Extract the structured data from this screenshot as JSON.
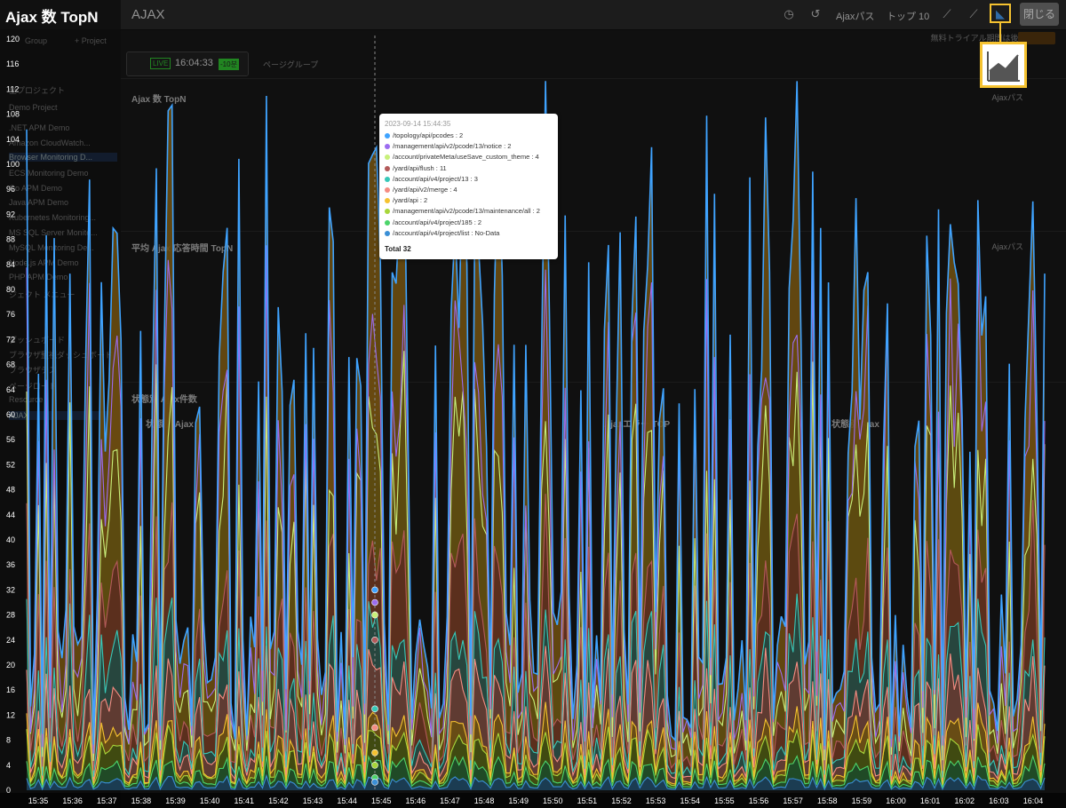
{
  "overlay": {
    "title": "Ajax 数 TopN"
  },
  "header": {
    "title": "AJAX",
    "ajax_path_label": "Ajaxパス",
    "top_label": "トップ 10",
    "close_label": "閉じる",
    "trial_text": "無料トライアル期間は後 349日で"
  },
  "live": {
    "badge": "LIVE",
    "time": "16:04:33",
    "seconds": "-10분",
    "page_group": "ページグループ"
  },
  "sidebar": {
    "group_label": "Group",
    "project_label": "+ Project",
    "all_projects": "全プロジェクト",
    "items": [
      "Demo Project",
      ".NET APM Demo",
      "Amazon CloudWatch...",
      "Browser Monitoring D...",
      "ECS Monitoring Demo",
      "Go APM Demo",
      "Java APM Demo",
      "Kubernetes Monitoring...",
      "MS SQL Server Monito...",
      "MySQL Monitoring De...",
      "Node.js APM Demo",
      "PHP APM Demo"
    ],
    "menu_title": "ジェクト メニュー",
    "menu_items": [
      "ダッシュボード",
      "ブラウザ監視ダッシュボード",
      "ブラウザテス",
      "ページロード",
      "Resource",
      "AJAX"
    ]
  },
  "panels": {
    "p1_title": "Ajax 数 TopN",
    "p1_right": "Ajaxパス",
    "p2_title": "平均 Ajax 応答時間 TopN",
    "p2_right": "Ajaxパス",
    "p3_title": "状態別 Ajax件数",
    "p3_cols": [
      "状態別 Ajax",
      "Ajaxエラー ТОР",
      "状態別 Ajax"
    ]
  },
  "tooltip": {
    "date": "2023-09-14 15:44:35",
    "rows": [
      {
        "label": "/topology/api/pcodes : 2",
        "color": "#3fa3ff"
      },
      {
        "label": "/management/api/v2/pcode/13/notice : 2",
        "color": "#9b6cf0"
      },
      {
        "label": "/account/privateMeta/useSave_custom_theme : 4",
        "color": "#c8f07a"
      },
      {
        "label": "/yard/api/flush : 11",
        "color": "#b35a5a"
      },
      {
        "label": "/account/api/v4/project/13 : 3",
        "color": "#37c8b8"
      },
      {
        "label": "/yard/api/v2/merge : 4",
        "color": "#f58c82"
      },
      {
        "label": "/yard/api : 2",
        "color": "#f5c230"
      },
      {
        "label": "/management/api/v2/pcode/13/maintenance/all : 2",
        "color": "#a8d63a"
      },
      {
        "label": "/account/api/v4/project/185 : 2",
        "color": "#4cd46a"
      },
      {
        "label": "/account/api/v4/project/list : No-Data",
        "color": "#3a8fd6"
      }
    ],
    "total": "Total 32"
  },
  "chart_data": {
    "type": "area",
    "title": "Ajax 数 TopN",
    "y_ticks": [
      0,
      4,
      8,
      12,
      16,
      20,
      24,
      28,
      32,
      36,
      40,
      44,
      48,
      52,
      56,
      60,
      64,
      68,
      72,
      76,
      80,
      84,
      88,
      92,
      96,
      100,
      104,
      108,
      112,
      116,
      120
    ],
    "ylim": [
      0,
      120
    ],
    "x_ticks": [
      "15:35",
      "15:36",
      "15:37",
      "15:38",
      "15:39",
      "15:40",
      "15:41",
      "15:42",
      "15:43",
      "15:44",
      "15:45",
      "15:46",
      "15:47",
      "15:48",
      "15:49",
      "15:50",
      "15:51",
      "15:52",
      "15:53",
      "15:54",
      "15:55",
      "15:56",
      "15:57",
      "15:58",
      "15:59",
      "16:00",
      "16:01",
      "16:02",
      "16:03",
      "16:04"
    ],
    "hover_time": "15:44:35",
    "hover_stack_totals": [
      32,
      30,
      28,
      24,
      13,
      10,
      6,
      4,
      2,
      0
    ],
    "stacked": true,
    "grid": false,
    "series_colors": [
      "#3fa3ff",
      "#9b6cf0",
      "#c8f07a",
      "#b35a5a",
      "#37c8b8",
      "#f58c82",
      "#f5c230",
      "#a8d63a",
      "#4cd46a",
      "#3a8fd6"
    ]
  },
  "colors": {
    "accent": "#f5c230",
    "live": "#33cc33",
    "active_icon": "#4aa3ff"
  }
}
